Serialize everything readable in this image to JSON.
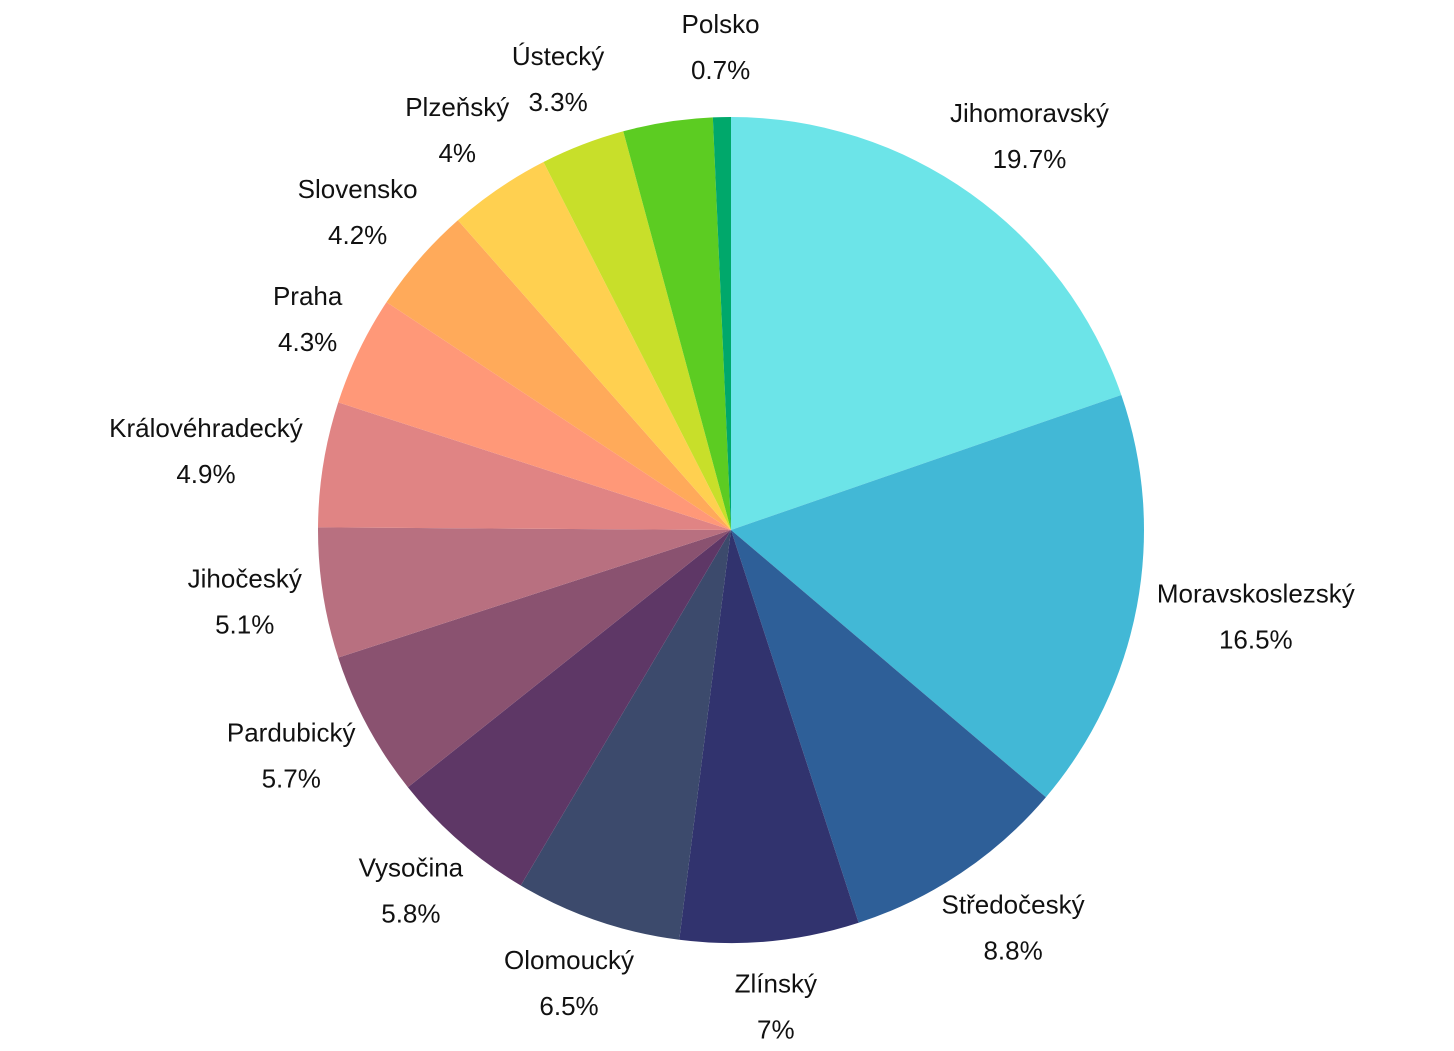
{
  "chart_data": {
    "type": "pie",
    "categories": [
      "Jihomoravský",
      "Moravskoslezský",
      "Středočeský",
      "Zlínský",
      "Olomoucký",
      "Vysočina",
      "Pardubický",
      "Jihočeský",
      "Královéhradecký",
      "Praha",
      "Slovensko",
      "Plzeňský",
      "Ústecký",
      null,
      "Polsko"
    ],
    "values": [
      19.7,
      16.5,
      8.8,
      7,
      6.5,
      5.8,
      5.7,
      5.1,
      4.9,
      4.3,
      4.2,
      4,
      3.3,
      3.5,
      0.7
    ],
    "value_labels": [
      "19.7%",
      "16.5%",
      "8.8%",
      "7%",
      "6.5%",
      "5.8%",
      "5.7%",
      "5.1%",
      "4.9%",
      "4.3%",
      "4.2%",
      "4%",
      "3.3%",
      null,
      "0.7%"
    ],
    "colors": [
      "#6ce4e8",
      "#42b8d6",
      "#2e5f98",
      "#31336e",
      "#3c4a6c",
      "#5e3766",
      "#8a5270",
      "#b87080",
      "#e08484",
      "#ff9878",
      "#ffaa5a",
      "#ffd050",
      "#c8df2a",
      "#5ccc22",
      "#00a86b"
    ]
  }
}
